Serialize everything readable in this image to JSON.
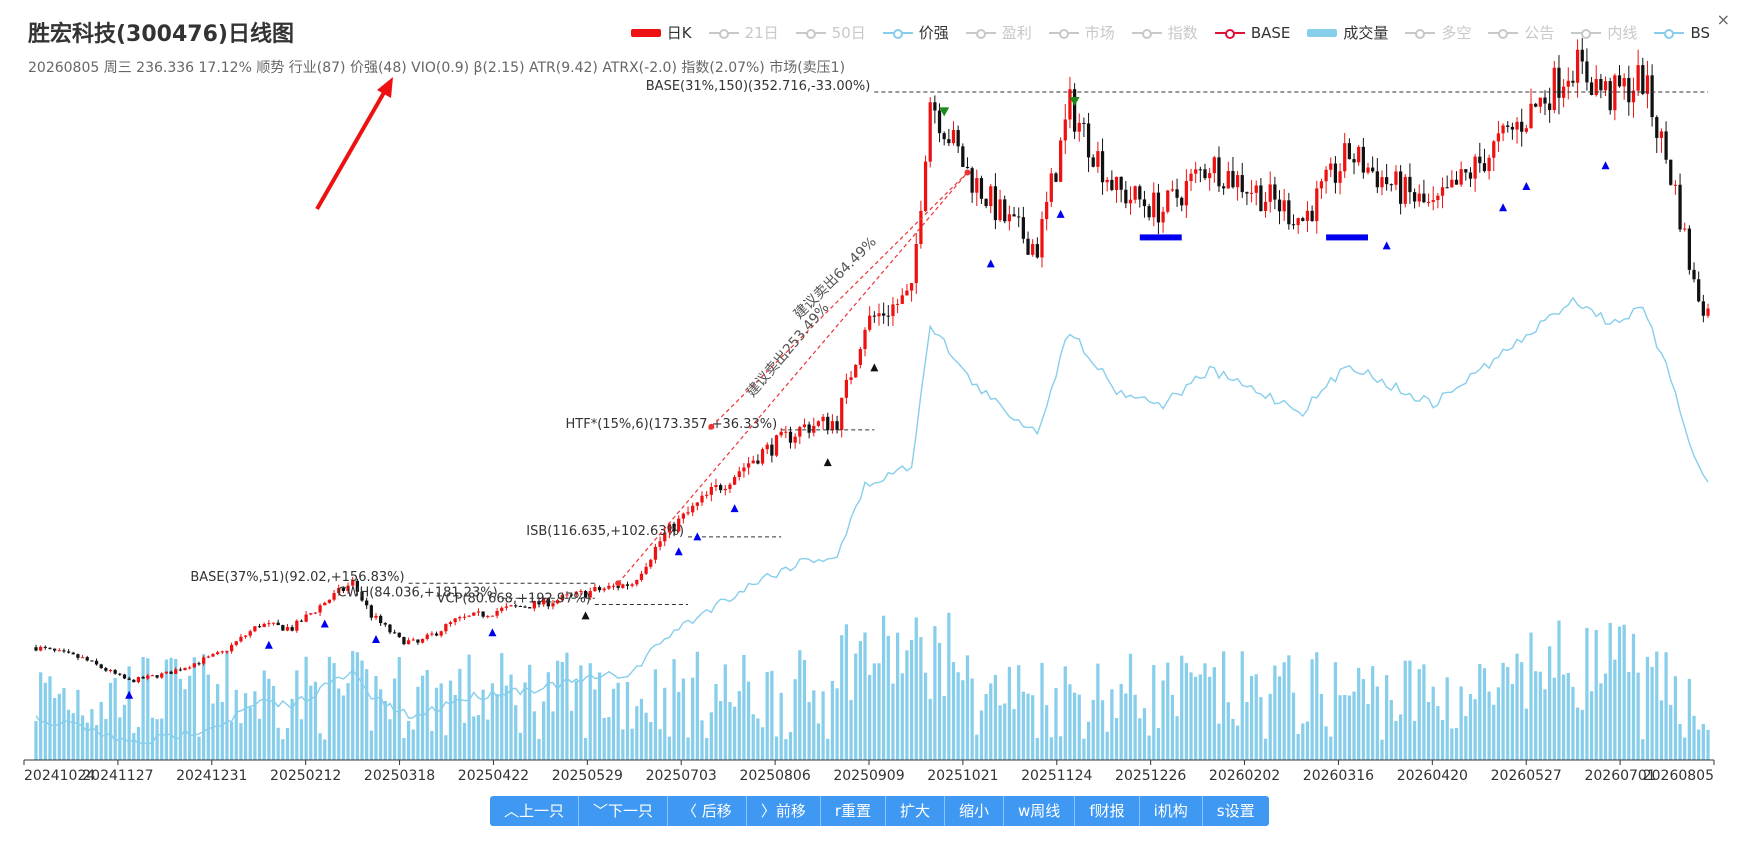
{
  "title": "胜宏科技(300476)日线图",
  "info": "20260805 周三 236.336 17.12% 顺势 行业(87) 价强(48) VIO(0.9) β(2.15) ATR(9.42) ATRX(-2.0) 指数(2.07%) 市场(卖压1)",
  "legend": [
    {
      "label": "日K",
      "state": "on",
      "kind": "bar",
      "color": "#ee1111"
    },
    {
      "label": "21日",
      "state": "off",
      "kind": "line",
      "color": "#c8c8c8"
    },
    {
      "label": "50日",
      "state": "off",
      "kind": "line",
      "color": "#c8c8c8"
    },
    {
      "label": "价强",
      "state": "on",
      "kind": "line",
      "color": "#87ceeb"
    },
    {
      "label": "盈利",
      "state": "off",
      "kind": "line",
      "color": "#c8c8c8"
    },
    {
      "label": "市场",
      "state": "off",
      "kind": "line",
      "color": "#c8c8c8"
    },
    {
      "label": "指数",
      "state": "off",
      "kind": "line",
      "color": "#c8c8c8"
    },
    {
      "label": "BASE",
      "state": "on",
      "kind": "line",
      "color": "#dc143c"
    },
    {
      "label": "成交量",
      "state": "on",
      "kind": "bar",
      "color": "#87ceeb"
    },
    {
      "label": "多空",
      "state": "off",
      "kind": "line",
      "color": "#c8c8c8"
    },
    {
      "label": "公告",
      "state": "off",
      "kind": "line",
      "color": "#c8c8c8"
    },
    {
      "label": "内线",
      "state": "off",
      "kind": "line",
      "color": "#c8c8c8"
    },
    {
      "label": "BS",
      "state": "on",
      "kind": "line",
      "color": "#87ceeb"
    }
  ],
  "close_icon": "×",
  "colors": {
    "up": "#ee1111",
    "down": "#111111",
    "strength": "#87ceeb",
    "volume": "#87ceeb",
    "signal": "#0000ee",
    "sell": "#1a8a1a",
    "trend": "#ee3333"
  },
  "x_axis": {
    "labels": [
      "20241024",
      "20241127",
      "20241231",
      "20250212",
      "20250318",
      "20250422",
      "20250529",
      "20250703",
      "20250806",
      "20250909",
      "20251021",
      "20251124",
      "20251226",
      "20260202",
      "20260316",
      "20260420",
      "20260527",
      "20260701",
      "20260805"
    ]
  },
  "annotations": [
    {
      "id": "base-2",
      "text": "BASE(31%,150)(352.716,-33.00%)",
      "price": 352.7,
      "from_date": "20250909",
      "to_date": "20260805"
    },
    {
      "id": "htf",
      "text": "HTF*(15%,6)(173.357,+36.33%)",
      "price": 173.4,
      "from_date": "20250806",
      "to_date": "20250909"
    },
    {
      "id": "isb",
      "text": "ISB(116.635,+102.63%)",
      "price": 116.6,
      "from_date": "20250703",
      "to_date": "20250806"
    },
    {
      "id": "base-1",
      "text": "BASE(37%,51)(92.02,+156.83%)",
      "price": 92.0,
      "from_date": "20250318",
      "to_date": "20250529"
    },
    {
      "id": "cwh",
      "text": "CWH(84.036,+181.23%)",
      "price": 84.0,
      "from_date": "20250422",
      "to_date": "20250529"
    },
    {
      "id": "vcp",
      "text": "VCP(80.668,+192.97%)",
      "price": 80.7,
      "from_date": "20250529",
      "to_date": "20250703"
    }
  ],
  "trend_labels": [
    {
      "id": "sell-1",
      "text": "建议卖出64.49%"
    },
    {
      "id": "sell-2",
      "text": "建议卖出253.49%"
    }
  ],
  "toolbar": [
    {
      "id": "prev",
      "label": "︿上一只"
    },
    {
      "id": "next",
      "label": "﹀下一只"
    },
    {
      "id": "back",
      "label": "〈 后移"
    },
    {
      "id": "forward",
      "label": "〉前移"
    },
    {
      "id": "reset",
      "label": "r重置"
    },
    {
      "id": "zoom-in",
      "label": "扩大"
    },
    {
      "id": "zoom-out",
      "label": "缩小"
    },
    {
      "id": "weekly",
      "label": "w周线"
    },
    {
      "id": "finance",
      "label": "f财报"
    },
    {
      "id": "institution",
      "label": "i机构"
    },
    {
      "id": "settings",
      "label": "s设置"
    }
  ]
}
